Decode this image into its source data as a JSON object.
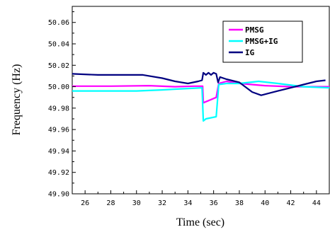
{
  "chart_data": {
    "type": "line",
    "xlabel": "Time (sec)",
    "ylabel": "Frequency (Hz)",
    "xlim": [
      25,
      45
    ],
    "ylim": [
      49.9,
      50.075
    ],
    "xticks": [
      26,
      28,
      30,
      32,
      34,
      36,
      38,
      40,
      42,
      44
    ],
    "xtick_labels": [
      "26",
      "28",
      "30",
      "32",
      "34",
      "36",
      "38",
      "40",
      "42",
      "44"
    ],
    "yticks": [
      49.9,
      49.92,
      49.94,
      49.96,
      49.98,
      50.0,
      50.02,
      50.04,
      50.06
    ],
    "ytick_labels": [
      "49.90",
      "49.92",
      "49.94",
      "49.96",
      "49.98",
      "50.00",
      "50.02",
      "50.04",
      "50.06"
    ],
    "grid": false,
    "legend_position": "top-right",
    "series": [
      {
        "name": "PMSG",
        "color": "#ff00ff",
        "points": [
          [
            25,
            50.0005
          ],
          [
            28,
            50.0005
          ],
          [
            31,
            50.001
          ],
          [
            33,
            50.0
          ],
          [
            34.5,
            50.0005
          ],
          [
            35.15,
            50.0005
          ],
          [
            35.2,
            49.985
          ],
          [
            35.6,
            49.987
          ],
          [
            36.2,
            49.99
          ],
          [
            36.4,
            50.003
          ],
          [
            37,
            50.005
          ],
          [
            38,
            50.003
          ],
          [
            40,
            50.001
          ],
          [
            42,
            50.0
          ],
          [
            43,
            50.0
          ],
          [
            45,
            50.0
          ]
        ]
      },
      {
        "name": "PMSG+IG",
        "color": "#00ffff",
        "points": [
          [
            25,
            49.996
          ],
          [
            30,
            49.996
          ],
          [
            32,
            49.997
          ],
          [
            33.5,
            49.998
          ],
          [
            35.1,
            49.999
          ],
          [
            35.2,
            49.968
          ],
          [
            35.4,
            49.97
          ],
          [
            36.2,
            49.972
          ],
          [
            36.4,
            50.002
          ],
          [
            37,
            50.003
          ],
          [
            38,
            50.003
          ],
          [
            39.5,
            50.005
          ],
          [
            41,
            50.003
          ],
          [
            43,
            50.0
          ],
          [
            45,
            49.999
          ]
        ]
      },
      {
        "name": "IG",
        "color": "#000080",
        "points": [
          [
            25,
            50.012
          ],
          [
            27,
            50.011
          ],
          [
            29,
            50.011
          ],
          [
            30.5,
            50.011
          ],
          [
            32,
            50.008
          ],
          [
            33,
            50.005
          ],
          [
            34,
            50.003
          ],
          [
            34.8,
            50.005
          ],
          [
            35.1,
            50.006
          ],
          [
            35.2,
            50.013
          ],
          [
            35.4,
            50.011
          ],
          [
            35.6,
            50.013
          ],
          [
            35.8,
            50.011
          ],
          [
            36,
            50.013
          ],
          [
            36.2,
            50.012
          ],
          [
            36.35,
            50.004
          ],
          [
            36.5,
            50.009
          ],
          [
            37,
            50.007
          ],
          [
            38,
            50.004
          ],
          [
            39,
            49.995
          ],
          [
            39.7,
            49.992
          ],
          [
            41,
            49.996
          ],
          [
            42,
            49.999
          ],
          [
            43,
            50.002
          ],
          [
            44,
            50.005
          ],
          [
            44.7,
            50.006
          ]
        ]
      }
    ]
  }
}
